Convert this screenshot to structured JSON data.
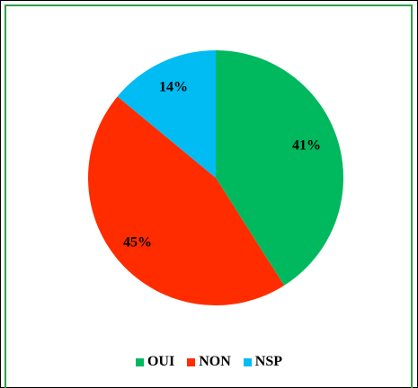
{
  "chart_data": {
    "type": "pie",
    "title": "",
    "start_angle_deg": 0,
    "direction": "clockwise",
    "legend_position": "bottom",
    "slices": [
      {
        "label": "OUI",
        "value": 41,
        "display": "41%",
        "color": "#00b95e"
      },
      {
        "label": "NON",
        "value": 45,
        "display": "45%",
        "color": "#ff2c00"
      },
      {
        "label": "NSP",
        "value": 14,
        "display": "14%",
        "color": "#00bcf2"
      }
    ]
  }
}
